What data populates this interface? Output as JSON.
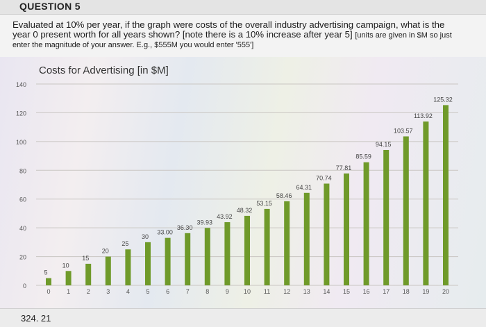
{
  "question": {
    "title": "QUESTION 5",
    "line1": "Evaluated at 10% per year, if the graph were costs of the overall industry advertising campaign, what is the",
    "line2_main": "year 0 present worth for all years shown? [note there is a 10% increase after year 5]",
    "line2_small": "[units are given in $M so just",
    "line3": "enter the magnitude of your answer. E.g., $555M you would enter '555']"
  },
  "answer": {
    "value": "324. 21"
  },
  "chart_data": {
    "type": "bar",
    "title": "Costs for Advertising [in $M]",
    "xlabel": "",
    "ylabel": "",
    "ylim": [
      0,
      140
    ],
    "yticks": [
      0,
      20,
      40,
      60,
      80,
      100,
      120,
      140
    ],
    "categories": [
      "0",
      "1",
      "2",
      "3",
      "4",
      "5",
      "6",
      "7",
      "8",
      "9",
      "10",
      "11",
      "12",
      "13",
      "14",
      "15",
      "16",
      "17",
      "18",
      "19",
      "20"
    ],
    "values": [
      5,
      10,
      15,
      20,
      25,
      30,
      33.0,
      36.3,
      39.93,
      43.92,
      48.32,
      53.15,
      58.46,
      64.31,
      70.74,
      77.81,
      85.59,
      94.15,
      103.57,
      113.92,
      125.32
    ],
    "data_labels": [
      "5",
      "10",
      "15",
      "20",
      "25",
      "30",
      "33.00",
      "36.30",
      "39.93",
      "43.92",
      "48.32",
      "53.15",
      "58.46",
      "64.31",
      "70.74",
      "77.81",
      "85.59",
      "94.15",
      "103.57",
      "113.92",
      "125.32"
    ],
    "grid": true,
    "bar_color": "#6f9a2a"
  }
}
